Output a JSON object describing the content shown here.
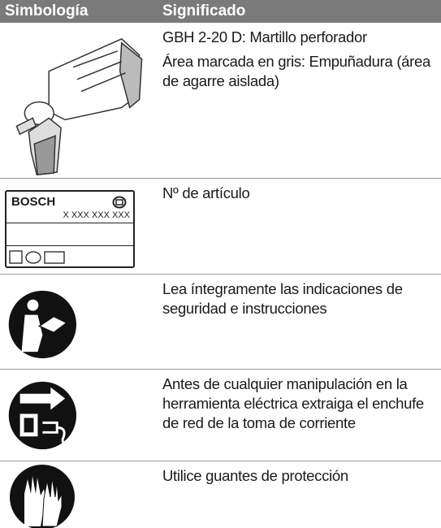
{
  "table": {
    "headers": [
      "Simbología",
      "Significado"
    ],
    "rows": [
      {
        "meaning": [
          "GBH 2-20 D: Martillo perforador",
          "Área marcada en gris: Empuñadura (área de agarre aislada)"
        ]
      },
      {
        "symbol": {
          "brand": "BOSCH",
          "number": "X XXX XXX XXX"
        },
        "meaning": [
          "Nº de artículo"
        ]
      },
      {
        "meaning": [
          "Lea íntegramente las indicaciones de seguridad e instrucciones"
        ]
      },
      {
        "meaning": [
          "Antes de cualquier manipulación en la herramienta eléctrica extraiga el enchufe de red de la toma de corriente"
        ]
      },
      {
        "meaning": [
          "Utilice guantes de protección"
        ]
      }
    ]
  }
}
